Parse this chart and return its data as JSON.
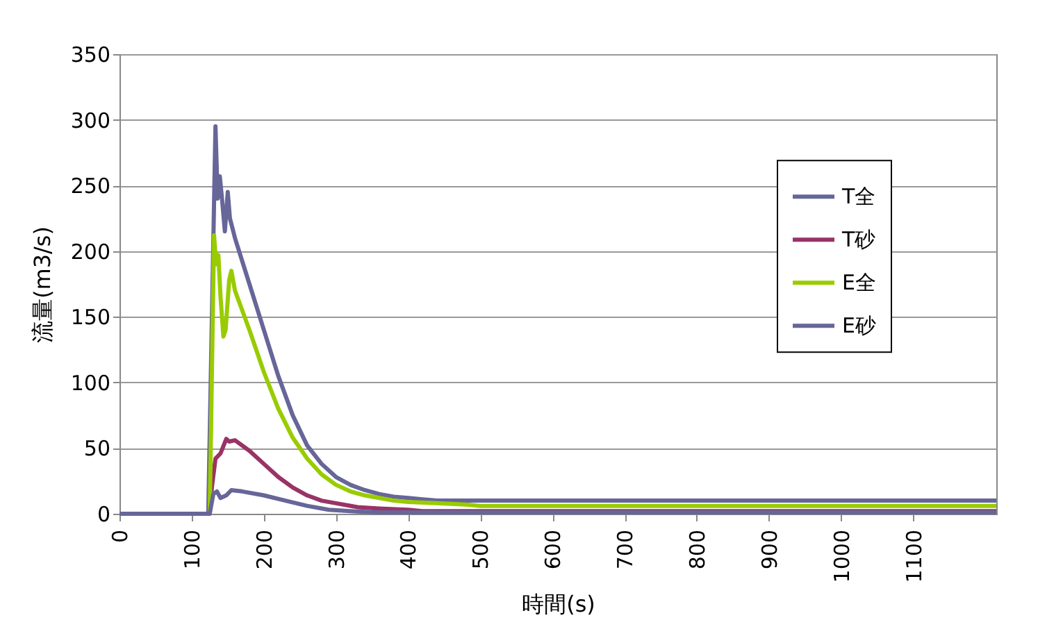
{
  "chart_data": {
    "type": "line",
    "xlabel": "時間(s)",
    "ylabel": "流量(m3/s)",
    "xlim": [
      0,
      1215
    ],
    "xticks": [
      0,
      100,
      200,
      300,
      400,
      500,
      600,
      700,
      800,
      900,
      1000,
      1100
    ],
    "ylim": [
      0,
      350
    ],
    "yticks": [
      0,
      50,
      100,
      150,
      200,
      250,
      300,
      350
    ],
    "grid": "y",
    "legend": "right",
    "marker": "none",
    "line_style": "solid",
    "series": [
      {
        "name": "T全",
        "color": "#666699",
        "x": [
          0,
          123,
          133,
          136,
          139,
          142,
          146,
          150,
          153,
          160,
          180,
          200,
          220,
          240,
          260,
          280,
          300,
          320,
          340,
          360,
          380,
          400,
          420,
          440,
          460,
          1215
        ],
        "values": [
          0,
          0,
          295,
          240,
          257,
          240,
          215,
          245,
          225,
          210,
          175,
          140,
          105,
          75,
          52,
          38,
          28,
          22,
          18,
          15,
          13,
          12,
          11,
          10,
          10,
          10
        ]
      },
      {
        "name": "T砂",
        "color": "#993366",
        "x": [
          0,
          125,
          128,
          133,
          140,
          148,
          152,
          160,
          180,
          200,
          220,
          240,
          260,
          280,
          300,
          330,
          360,
          400,
          420,
          1215
        ],
        "values": [
          0,
          0,
          20,
          42,
          46,
          57,
          55,
          56,
          48,
          38,
          28,
          20,
          14,
          10,
          8,
          5,
          4,
          3,
          2,
          2
        ]
      },
      {
        "name": "E全",
        "color": "#99cc00",
        "x": [
          0,
          125,
          131,
          134,
          137,
          140,
          144,
          147,
          152,
          155,
          160,
          180,
          200,
          220,
          240,
          260,
          280,
          300,
          320,
          340,
          360,
          380,
          400,
          440,
          480,
          500,
          1215
        ],
        "values": [
          0,
          0,
          212,
          190,
          197,
          165,
          135,
          140,
          178,
          185,
          170,
          140,
          108,
          80,
          58,
          42,
          30,
          22,
          17,
          14,
          12,
          10,
          9,
          8,
          7,
          6,
          6
        ]
      },
      {
        "name": "E砂",
        "color": "#666699",
        "x": [
          0,
          125,
          130,
          135,
          140,
          148,
          155,
          170,
          200,
          230,
          260,
          290,
          320,
          360,
          1215
        ],
        "values": [
          0,
          0,
          15,
          17,
          12,
          14,
          18,
          17,
          14,
          10,
          6,
          3,
          2,
          1,
          1
        ]
      }
    ]
  }
}
